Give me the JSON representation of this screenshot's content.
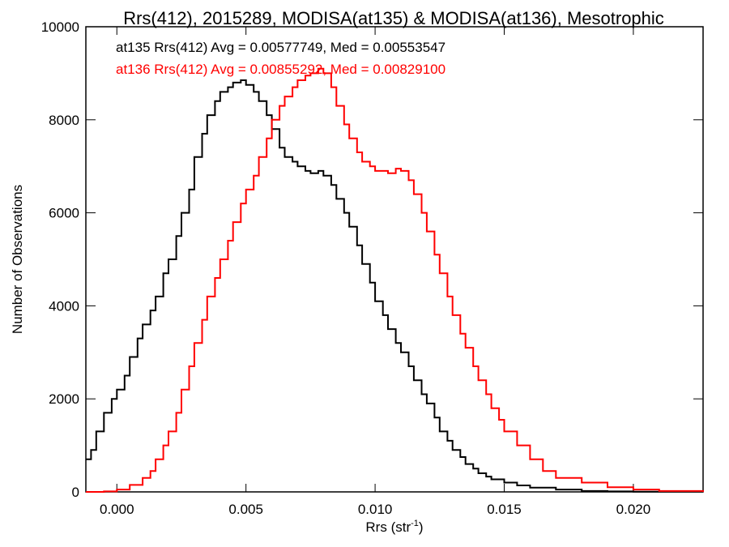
{
  "chart_data": {
    "type": "line",
    "title": "Rrs(412), 2015289, MODISA(at135) & MODISA(at136), Mesotrophic",
    "xlabel": "Rrs (str",
    "xlabel_sup": "-1",
    "xlabel_close": ")",
    "ylabel": "Number of Observations",
    "xlim": [
      -0.0012,
      0.0227
    ],
    "ylim": [
      0,
      10000
    ],
    "xticks": [
      0.0,
      0.005,
      0.01,
      0.015,
      0.02
    ],
    "xtick_labels": [
      "0.000",
      "0.005",
      "0.010",
      "0.015",
      "0.020"
    ],
    "yticks": [
      0,
      2000,
      4000,
      6000,
      8000,
      10000
    ],
    "ytick_labels": [
      "0",
      "2000",
      "4000",
      "6000",
      "8000",
      "10000"
    ],
    "grid": false,
    "annotations": [
      {
        "text": "at135 Rrs(412) Avg = 0.00577749, Med = 0.00553547",
        "color": "#000000"
      },
      {
        "text": "at136 Rrs(412) Avg = 0.00855292, Med = 0.00829100",
        "color": "#ff0000"
      }
    ],
    "series": [
      {
        "color": "#000000",
        "points": [
          [
            -0.0012,
            700
          ],
          [
            -0.001,
            900
          ],
          [
            -0.0008,
            1300
          ],
          [
            -0.0005,
            1700
          ],
          [
            -0.0002,
            2000
          ],
          [
            0.0,
            2200
          ],
          [
            0.0003,
            2500
          ],
          [
            0.0005,
            2900
          ],
          [
            0.0008,
            3300
          ],
          [
            0.001,
            3600
          ],
          [
            0.0013,
            3900
          ],
          [
            0.0015,
            4200
          ],
          [
            0.0018,
            4700
          ],
          [
            0.002,
            5000
          ],
          [
            0.0023,
            5500
          ],
          [
            0.0025,
            6000
          ],
          [
            0.0028,
            6500
          ],
          [
            0.003,
            7200
          ],
          [
            0.0033,
            7700
          ],
          [
            0.0035,
            8100
          ],
          [
            0.0038,
            8400
          ],
          [
            0.004,
            8600
          ],
          [
            0.0043,
            8700
          ],
          [
            0.0045,
            8800
          ],
          [
            0.0048,
            8850
          ],
          [
            0.005,
            8750
          ],
          [
            0.0053,
            8600
          ],
          [
            0.0055,
            8400
          ],
          [
            0.0058,
            8100
          ],
          [
            0.006,
            7800
          ],
          [
            0.0063,
            7400
          ],
          [
            0.0065,
            7200
          ],
          [
            0.0068,
            7100
          ],
          [
            0.007,
            7000
          ],
          [
            0.0073,
            6900
          ],
          [
            0.0075,
            6850
          ],
          [
            0.0078,
            6900
          ],
          [
            0.008,
            6800
          ],
          [
            0.0083,
            6600
          ],
          [
            0.0085,
            6300
          ],
          [
            0.0088,
            6000
          ],
          [
            0.009,
            5700
          ],
          [
            0.0093,
            5300
          ],
          [
            0.0095,
            4900
          ],
          [
            0.0098,
            4500
          ],
          [
            0.01,
            4100
          ],
          [
            0.0103,
            3800
          ],
          [
            0.0105,
            3500
          ],
          [
            0.0108,
            3200
          ],
          [
            0.011,
            3000
          ],
          [
            0.0113,
            2700
          ],
          [
            0.0115,
            2400
          ],
          [
            0.0118,
            2100
          ],
          [
            0.012,
            1900
          ],
          [
            0.0123,
            1600
          ],
          [
            0.0125,
            1300
          ],
          [
            0.0128,
            1100
          ],
          [
            0.013,
            900
          ],
          [
            0.0133,
            750
          ],
          [
            0.0135,
            600
          ],
          [
            0.0138,
            500
          ],
          [
            0.014,
            400
          ],
          [
            0.0143,
            330
          ],
          [
            0.0145,
            270
          ],
          [
            0.015,
            200
          ],
          [
            0.0155,
            140
          ],
          [
            0.016,
            90
          ],
          [
            0.017,
            50
          ],
          [
            0.018,
            20
          ],
          [
            0.019,
            10
          ],
          [
            0.02,
            5
          ],
          [
            0.0227,
            0
          ]
        ]
      },
      {
        "color": "#ff0000",
        "points": [
          [
            -0.0012,
            0
          ],
          [
            -0.0005,
            10
          ],
          [
            0.0,
            50
          ],
          [
            0.0005,
            150
          ],
          [
            0.001,
            300
          ],
          [
            0.0013,
            450
          ],
          [
            0.0015,
            700
          ],
          [
            0.0018,
            1000
          ],
          [
            0.002,
            1300
          ],
          [
            0.0023,
            1700
          ],
          [
            0.0025,
            2200
          ],
          [
            0.0028,
            2700
          ],
          [
            0.003,
            3200
          ],
          [
            0.0033,
            3700
          ],
          [
            0.0035,
            4200
          ],
          [
            0.0038,
            4600
          ],
          [
            0.004,
            5000
          ],
          [
            0.0043,
            5400
          ],
          [
            0.0045,
            5800
          ],
          [
            0.0048,
            6200
          ],
          [
            0.005,
            6500
          ],
          [
            0.0053,
            6800
          ],
          [
            0.0055,
            7200
          ],
          [
            0.0058,
            7600
          ],
          [
            0.006,
            8000
          ],
          [
            0.0063,
            8300
          ],
          [
            0.0065,
            8500
          ],
          [
            0.0068,
            8700
          ],
          [
            0.007,
            8850
          ],
          [
            0.0073,
            8950
          ],
          [
            0.0075,
            9000
          ],
          [
            0.0078,
            9100
          ],
          [
            0.008,
            9000
          ],
          [
            0.0083,
            8700
          ],
          [
            0.0085,
            8300
          ],
          [
            0.0088,
            7900
          ],
          [
            0.009,
            7600
          ],
          [
            0.0093,
            7300
          ],
          [
            0.0095,
            7100
          ],
          [
            0.0098,
            7000
          ],
          [
            0.01,
            6900
          ],
          [
            0.0103,
            6900
          ],
          [
            0.0105,
            6850
          ],
          [
            0.0108,
            6950
          ],
          [
            0.011,
            6900
          ],
          [
            0.0113,
            6700
          ],
          [
            0.0115,
            6400
          ],
          [
            0.0118,
            6000
          ],
          [
            0.012,
            5600
          ],
          [
            0.0123,
            5100
          ],
          [
            0.0125,
            4700
          ],
          [
            0.0128,
            4200
          ],
          [
            0.013,
            3800
          ],
          [
            0.0133,
            3400
          ],
          [
            0.0135,
            3100
          ],
          [
            0.0138,
            2700
          ],
          [
            0.014,
            2400
          ],
          [
            0.0143,
            2100
          ],
          [
            0.0145,
            1800
          ],
          [
            0.0148,
            1550
          ],
          [
            0.015,
            1300
          ],
          [
            0.0155,
            1000
          ],
          [
            0.016,
            700
          ],
          [
            0.0165,
            450
          ],
          [
            0.017,
            300
          ],
          [
            0.018,
            200
          ],
          [
            0.019,
            100
          ],
          [
            0.02,
            50
          ],
          [
            0.021,
            20
          ],
          [
            0.0227,
            0
          ]
        ]
      }
    ]
  }
}
